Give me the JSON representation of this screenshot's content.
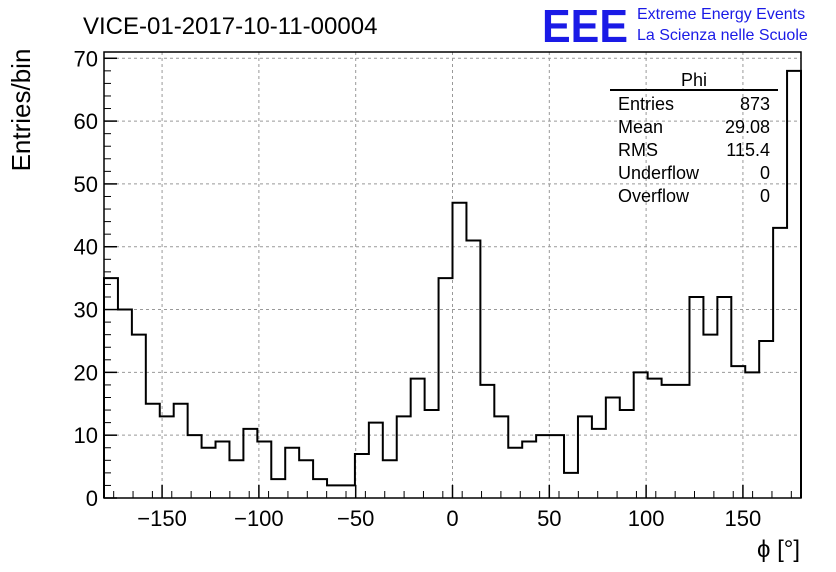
{
  "title": "VICE-01-2017-10-11-00004",
  "logo": {
    "mark": "EEE",
    "line1": "Extreme Energy Events",
    "line2": "La Scienza nelle Scuole",
    "color": "#1a1ae6"
  },
  "stats": {
    "name": "Phi",
    "rows": [
      {
        "label": "Entries",
        "value": "873"
      },
      {
        "label": "Mean",
        "value": "29.08"
      },
      {
        "label": "RMS",
        "value": "115.4"
      },
      {
        "label": "Underflow",
        "value": "0"
      },
      {
        "label": "Overflow",
        "value": "0"
      }
    ]
  },
  "chart_data": {
    "type": "histogram",
    "title": "VICE-01-2017-10-11-00004",
    "xlabel": "ϕ [°]",
    "ylabel": "Entries/bin",
    "xlim": [
      -180,
      180
    ],
    "ylim": [
      0,
      71
    ],
    "bin_width": 7.2,
    "grid": true,
    "x_ticks": [
      -150,
      -100,
      -50,
      0,
      50,
      100,
      150
    ],
    "y_ticks": [
      0,
      10,
      20,
      30,
      40,
      50,
      60,
      70
    ],
    "counts": [
      35,
      30,
      26,
      15,
      13,
      15,
      10,
      8,
      9,
      6,
      11,
      9,
      3,
      8,
      6,
      3,
      2,
      2,
      7,
      12,
      6,
      13,
      19,
      14,
      35,
      47,
      41,
      18,
      13,
      8,
      9,
      10,
      10,
      4,
      13,
      11,
      16,
      14,
      20,
      19,
      18,
      18,
      32,
      26,
      32,
      21,
      20,
      25,
      43,
      68
    ]
  }
}
